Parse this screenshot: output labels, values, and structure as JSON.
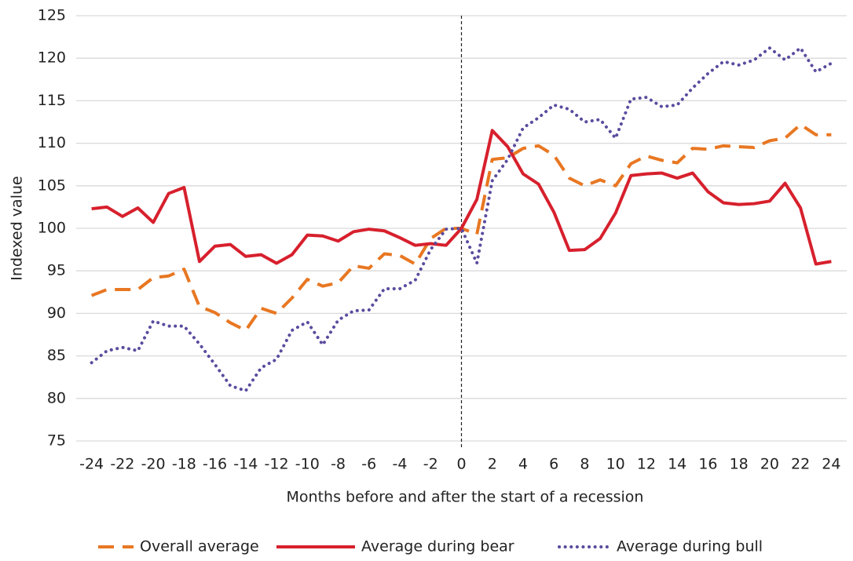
{
  "chart_data": {
    "type": "line",
    "x_label": "Months before and after the start of a recession",
    "y_label": "Indexed value",
    "x": [
      -24,
      -23,
      -22,
      -21,
      -20,
      -19,
      -18,
      -17,
      -16,
      -15,
      -14,
      -13,
      -12,
      -11,
      -10,
      -9,
      -8,
      -7,
      -6,
      -5,
      -4,
      -3,
      -2,
      -1,
      0,
      1,
      2,
      3,
      4,
      5,
      6,
      7,
      8,
      9,
      10,
      11,
      12,
      13,
      14,
      15,
      16,
      17,
      18,
      19,
      20,
      21,
      22,
      23,
      24
    ],
    "series": [
      {
        "name": "Overall average",
        "color": "#e87722",
        "style": "dashed",
        "values": [
          92.1,
          92.8,
          92.8,
          92.8,
          94.2,
          94.4,
          95.2,
          90.8,
          90.1,
          88.9,
          88.0,
          90.6,
          90.0,
          91.8,
          94.0,
          93.2,
          93.6,
          95.6,
          95.3,
          97.0,
          96.8,
          95.8,
          98.8,
          100.0,
          100,
          99.3,
          108.1,
          108.3,
          109.4,
          109.7,
          108.6,
          105.9,
          105.0,
          105.7,
          105.0,
          107.6,
          108.5,
          108.0,
          107.7,
          109.4,
          109.3,
          109.7,
          109.6,
          109.5,
          110.3,
          110.6,
          112.2,
          111.0,
          111.0
        ]
      },
      {
        "name": "Average during bear",
        "color": "#d7202d",
        "style": "solid",
        "values": [
          102.3,
          102.5,
          101.4,
          102.4,
          100.7,
          104.1,
          104.8,
          96.1,
          97.9,
          98.1,
          96.7,
          96.9,
          95.9,
          96.9,
          99.2,
          99.1,
          98.5,
          99.6,
          99.9,
          99.7,
          98.9,
          98.0,
          98.2,
          98.0,
          100,
          103.4,
          111.5,
          109.6,
          106.4,
          105.2,
          101.9,
          97.4,
          97.5,
          98.8,
          101.8,
          106.2,
          106.4,
          106.5,
          105.9,
          106.5,
          104.3,
          103.0,
          102.8,
          102.9,
          103.2,
          105.3,
          102.4,
          95.8,
          96.1
        ]
      },
      {
        "name": "Average during bull",
        "color": "#5b4b9e",
        "style": "dotted",
        "values": [
          84.2,
          85.6,
          86.0,
          85.6,
          89.1,
          88.5,
          88.5,
          86.4,
          84.0,
          81.5,
          80.9,
          83.6,
          84.6,
          88.0,
          89.0,
          86.3,
          89.2,
          90.3,
          90.4,
          92.9,
          92.9,
          93.9,
          97.5,
          99.9,
          100,
          95.9,
          105.6,
          108.1,
          111.8,
          113.0,
          114.5,
          114.0,
          112.5,
          112.8,
          110.6,
          115.2,
          115.4,
          114.3,
          114.5,
          116.5,
          118.2,
          119.6,
          119.2,
          119.8,
          121.2,
          119.8,
          121.2,
          118.4,
          119.4
        ]
      }
    ],
    "xlim": [
      -25,
      25
    ],
    "xticks": [
      -24,
      -22,
      -20,
      -18,
      -16,
      -14,
      -12,
      -10,
      -8,
      -6,
      -4,
      -2,
      0,
      2,
      4,
      6,
      8,
      10,
      12,
      14,
      16,
      18,
      20,
      22,
      24
    ],
    "ylim": [
      75,
      125
    ],
    "yticks": [
      75,
      80,
      85,
      90,
      95,
      100,
      105,
      110,
      115,
      120,
      125
    ],
    "vline": 0,
    "grid": true,
    "legend": "bottom"
  }
}
